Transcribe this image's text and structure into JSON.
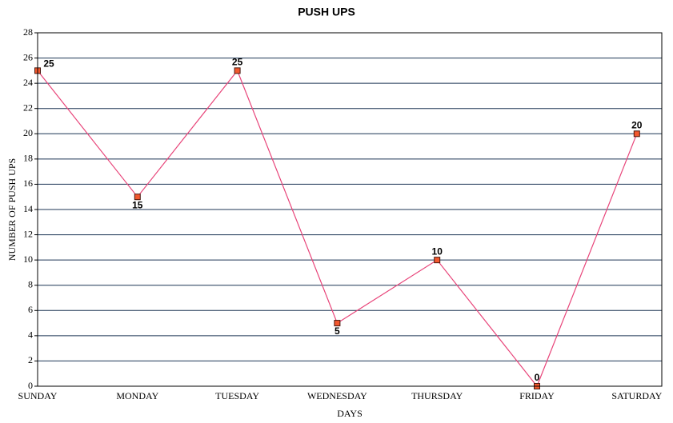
{
  "chart_data": {
    "type": "line",
    "title": "PUSH UPS",
    "x_label": "DAYS",
    "y_label": "NUMBER OF PUSH UPS",
    "categories": [
      "SUNDAY",
      "MONDAY",
      "TUESDAY",
      "WEDNESDAY",
      "THURSDAY",
      "FRIDAY",
      "SATURDAY"
    ],
    "series": [
      {
        "name": "PUSH UPS",
        "color": "#e8457a",
        "marker_color": "#f2582e",
        "values": [
          25,
          15,
          25,
          5,
          10,
          0,
          20
        ]
      }
    ],
    "ylim": [
      0,
      28
    ],
    "yticks": [
      0,
      2,
      4,
      6,
      8,
      10,
      12,
      14,
      16,
      18,
      20,
      22,
      24,
      26,
      28
    ],
    "grid": true,
    "data_labels": true
  }
}
